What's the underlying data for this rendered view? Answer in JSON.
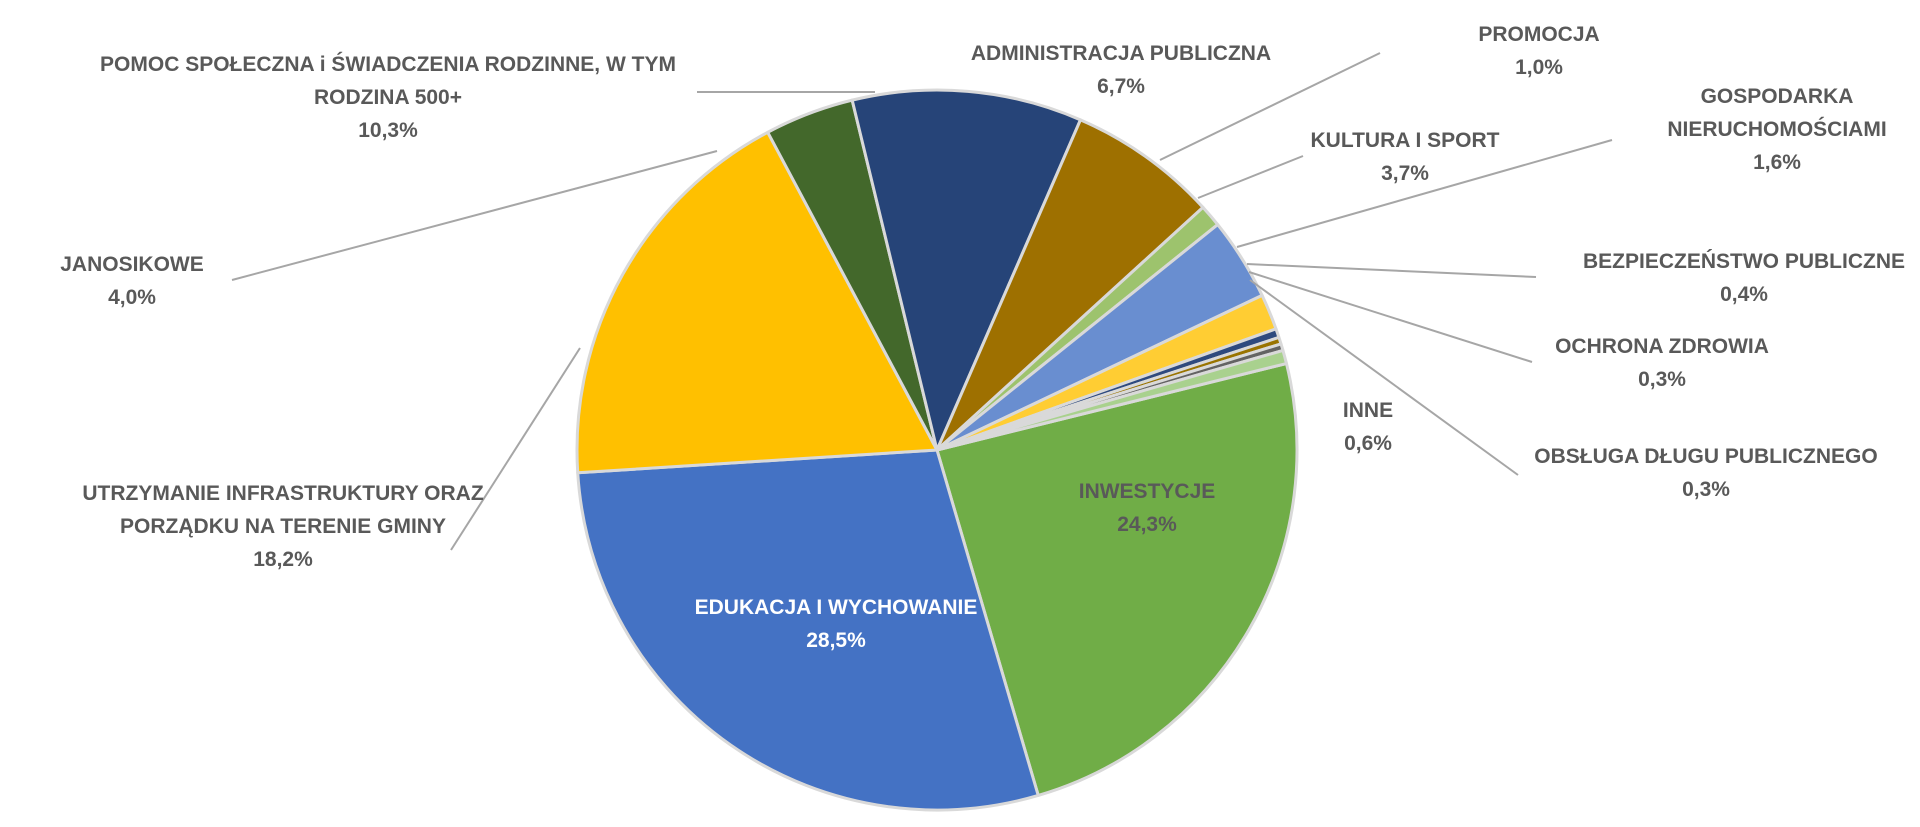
{
  "chart_data": {
    "type": "pie",
    "unit": "%",
    "slices": [
      {
        "label": [
          "INWESTYCJE"
        ],
        "value_text": "24,3%",
        "value": 24.3,
        "color": "#70ad47"
      },
      {
        "label": [
          "EDUKACJA I WYCHOWANIE"
        ],
        "value_text": "28,5%",
        "value": 28.5,
        "color": "#4472c4"
      },
      {
        "label": [
          "UTRZYMANIE INFRASTRUKTURY ORAZ",
          "PORZĄDKU NA TERENIE GMINY"
        ],
        "value_text": "18,2%",
        "value": 18.2,
        "color": "#ffc000"
      },
      {
        "label": [
          "JANOSIKOWE"
        ],
        "value_text": "4,0%",
        "value": 4.0,
        "color": "#43682b"
      },
      {
        "label": [
          "POMOC SPOŁECZNA i ŚWIADCZENIA RODZINNE, W TYM",
          "RODZINA 500+"
        ],
        "value_text": "10,3%",
        "value": 10.3,
        "color": "#264478"
      },
      {
        "label": [
          "ADMINISTRACJA PUBLICZNA"
        ],
        "value_text": "6,7%",
        "value": 6.7,
        "color": "#9e7000"
      },
      {
        "label": [
          "PROMOCJA"
        ],
        "value_text": "1,0%",
        "value": 1.0,
        "color": "#9dc36d"
      },
      {
        "label": [
          "KULTURA I SPORT"
        ],
        "value_text": "3,7%",
        "value": 3.7,
        "color": "#698ed0"
      },
      {
        "label": [
          "GOSPODARKA",
          "NIERUCHOMOŚCIAMI"
        ],
        "value_text": "1,6%",
        "value": 1.6,
        "color": "#ffcd33"
      },
      {
        "label": [
          "BEZPIECZEŃSTWO PUBLICZNE"
        ],
        "value_text": "0,4%",
        "value": 0.4,
        "color": "#2e4a7e"
      },
      {
        "label": [
          "OCHRONA ZDROWIA"
        ],
        "value_text": "0,3%",
        "value": 0.3,
        "color": "#997300"
      },
      {
        "label": [
          "OBSŁUGA DŁUGU PUBLICZNEGO"
        ],
        "value_text": "0,3%",
        "value": 0.3,
        "color": "#636363"
      },
      {
        "label": [
          "INNE"
        ],
        "value_text": "0,6%",
        "value": 0.6,
        "color": "#a9d18e"
      }
    ]
  }
}
